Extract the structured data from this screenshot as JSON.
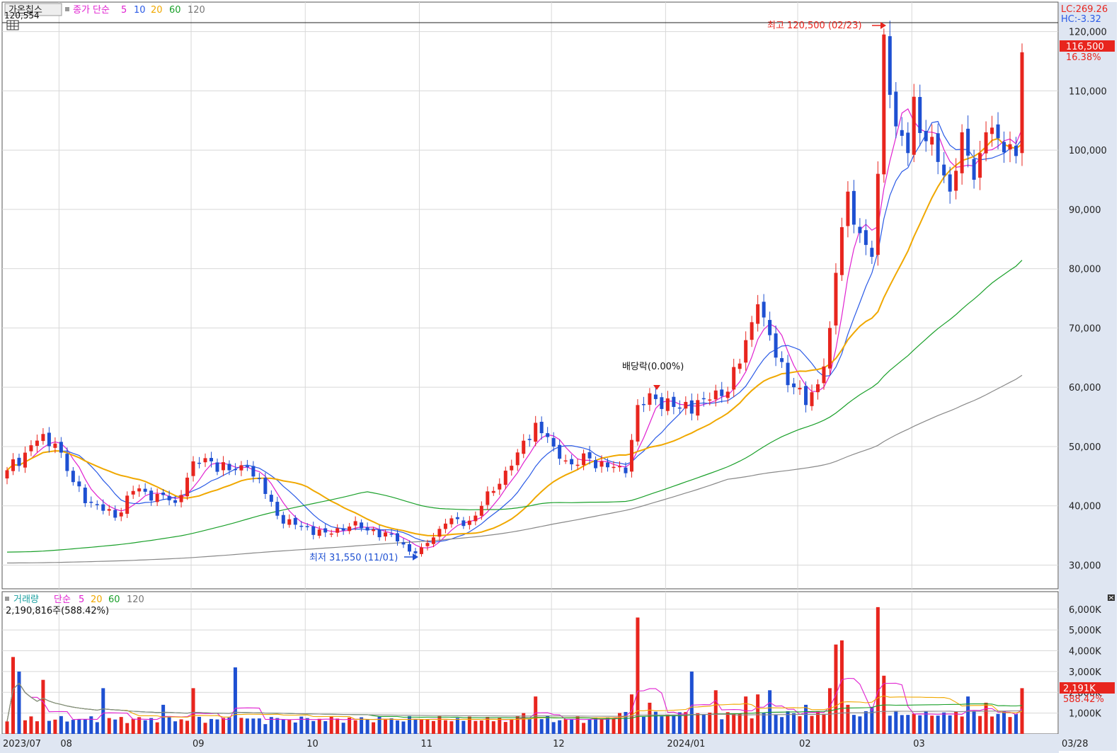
{
  "header": {
    "stock_name": "가온칩스",
    "price_legend": {
      "label": "종가 단순",
      "periods": [
        "5",
        "10",
        "20",
        "60",
        "120"
      ]
    },
    "crosshair_value": "120,554",
    "lc_text": "LC:269.26",
    "hc_text": "HC:-3.32"
  },
  "volume_header": {
    "label": "거래량",
    "ma_label": "단순",
    "periods": [
      "5",
      "20",
      "60",
      "120"
    ],
    "current_text": "2,190,816주(588.42%)"
  },
  "colors": {
    "up": "#e8251e",
    "down": "#1e50d2",
    "ma5": "#e020d0",
    "ma10": "#2a5ae6",
    "ma20": "#f0a800",
    "ma60": "#1aa02a",
    "ma120": "#888888",
    "axis_bg": "#dfe6f2"
  },
  "annotations": {
    "high": "최고 120,500 (02/23)",
    "low": "최저 31,550 (11/01)",
    "ex_dividend": "배당락(0.00%)"
  },
  "price_axis": {
    "current_price": "116,500",
    "current_pct": "16.38%"
  },
  "volume_axis": {
    "current_volume": "2,191K",
    "current_pct": "588.42%"
  },
  "chart_data": {
    "type": "candlestick",
    "price_ylim": [
      26000,
      121500
    ],
    "price_ticks": [
      {
        "v": 30000,
        "t": "30,000"
      },
      {
        "v": 40000,
        "t": "40,000"
      },
      {
        "v": 50000,
        "t": "50,000"
      },
      {
        "v": 60000,
        "t": "60,000"
      },
      {
        "v": 70000,
        "t": "70,000"
      },
      {
        "v": 80000,
        "t": "80,000"
      },
      {
        "v": 90000,
        "t": "90,000"
      },
      {
        "v": 100000,
        "t": "100,000"
      },
      {
        "v": 110000,
        "t": "110,000"
      },
      {
        "v": 120000,
        "t": "120,000"
      }
    ],
    "volume_ylim": [
      0,
      6300
    ],
    "volume_unit": "K",
    "volume_ticks": [
      {
        "v": 1000,
        "t": "1,000K"
      },
      {
        "v": 2000,
        "t": "2,000K"
      },
      {
        "v": 3000,
        "t": "3,000K"
      },
      {
        "v": 4000,
        "t": "4,000K"
      },
      {
        "v": 5000,
        "t": "5,000K"
      },
      {
        "v": 6000,
        "t": "6,000K"
      }
    ],
    "x_labels": [
      {
        "i": 0,
        "t": "2023/07"
      },
      {
        "i": 9,
        "t": "08"
      },
      {
        "i": 31,
        "t": "09"
      },
      {
        "i": 50,
        "t": "10"
      },
      {
        "i": 69,
        "t": "11"
      },
      {
        "i": 91,
        "t": "12"
      },
      {
        "i": 110,
        "t": "2024/01"
      },
      {
        "i": 132,
        "t": "02"
      },
      {
        "i": 151,
        "t": "03"
      },
      {
        "i": 175,
        "t": "03/28"
      }
    ],
    "high_point": {
      "value": 120500,
      "date": "02/23"
    },
    "low_point": {
      "value": 31550,
      "date": "11/01"
    },
    "anchors": [
      [
        0,
        46000
      ],
      [
        5,
        51000
      ],
      [
        8,
        50500
      ],
      [
        11,
        44000
      ],
      [
        14,
        40500
      ],
      [
        18,
        38000
      ],
      [
        21,
        42500
      ],
      [
        25,
        42000
      ],
      [
        28,
        40500
      ],
      [
        31,
        47500
      ],
      [
        34,
        47500
      ],
      [
        37,
        46000
      ],
      [
        40,
        46500
      ],
      [
        43,
        42000
      ],
      [
        46,
        37000
      ],
      [
        49,
        36500
      ],
      [
        53,
        35500
      ],
      [
        57,
        36500
      ],
      [
        61,
        36000
      ],
      [
        65,
        34000
      ],
      [
        68,
        32000
      ],
      [
        69,
        33000
      ],
      [
        73,
        37000
      ],
      [
        77,
        37500
      ],
      [
        81,
        42500
      ],
      [
        85,
        49000
      ],
      [
        88,
        54000
      ],
      [
        91,
        50000
      ],
      [
        94,
        47000
      ],
      [
        97,
        48000
      ],
      [
        100,
        46500
      ],
      [
        103,
        45500
      ],
      [
        105,
        57000
      ],
      [
        108,
        58000
      ],
      [
        112,
        56500
      ],
      [
        116,
        58000
      ],
      [
        119,
        58500
      ],
      [
        122,
        64000
      ],
      [
        125,
        74000
      ],
      [
        128,
        65000
      ],
      [
        131,
        60000
      ],
      [
        133,
        57000
      ],
      [
        135,
        60500
      ],
      [
        137,
        70000
      ],
      [
        139,
        87000
      ],
      [
        140,
        93000
      ],
      [
        142,
        86000
      ],
      [
        143,
        84000
      ],
      [
        144,
        82000
      ],
      [
        145,
        96000
      ],
      [
        146,
        119500
      ],
      [
        148,
        104000
      ],
      [
        150,
        99500
      ],
      [
        151,
        109000
      ],
      [
        153,
        101500
      ],
      [
        155,
        98000
      ],
      [
        157,
        93000
      ],
      [
        159,
        103000
      ],
      [
        161,
        95000
      ],
      [
        163,
        103000
      ],
      [
        165,
        102000
      ],
      [
        167,
        101000
      ],
      [
        168,
        99000
      ],
      [
        169,
        116500
      ]
    ],
    "volume_spikes": [
      [
        1,
        3700
      ],
      [
        2,
        3000
      ],
      [
        6,
        2600
      ],
      [
        16,
        2200
      ],
      [
        26,
        1400
      ],
      [
        31,
        2200
      ],
      [
        38,
        3200
      ],
      [
        86,
        1000
      ],
      [
        88,
        1800
      ],
      [
        104,
        1900
      ],
      [
        105,
        5600
      ],
      [
        107,
        1500
      ],
      [
        114,
        3000
      ],
      [
        118,
        2100
      ],
      [
        123,
        1800
      ],
      [
        125,
        1900
      ],
      [
        127,
        2100
      ],
      [
        133,
        1400
      ],
      [
        137,
        2200
      ],
      [
        138,
        4300
      ],
      [
        139,
        4500
      ],
      [
        140,
        1400
      ],
      [
        144,
        1300
      ],
      [
        145,
        6100
      ],
      [
        146,
        2800
      ],
      [
        160,
        1800
      ],
      [
        163,
        1500
      ],
      [
        169,
        2200
      ]
    ],
    "series": [
      {
        "period": "5"
      },
      {
        "period": "10"
      },
      {
        "period": "20"
      },
      {
        "period": "60"
      },
      {
        "period": "120"
      }
    ]
  }
}
